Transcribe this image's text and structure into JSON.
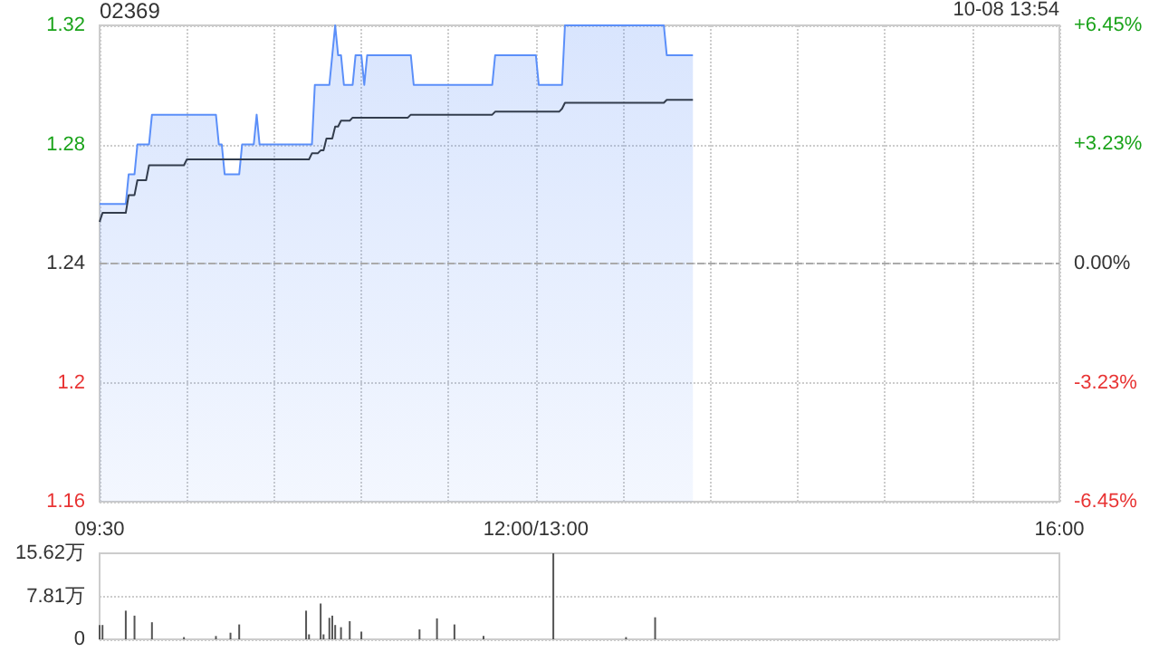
{
  "chart_data": [
    {
      "type": "line",
      "title": "02369",
      "annotations": [
        "10-08 13:54"
      ],
      "categories": [
        "09:30",
        null,
        null,
        null,
        null,
        null,
        null,
        null,
        null,
        null,
        null,
        null,
        null,
        null,
        null,
        null,
        null,
        null,
        null,
        null,
        null,
        null,
        null,
        null,
        null,
        null,
        null,
        null,
        null,
        null,
        null,
        null,
        null,
        null,
        null,
        null,
        null,
        null,
        null,
        null,
        null,
        null,
        null,
        null,
        null,
        null,
        null,
        null,
        null,
        null,
        null,
        null,
        null,
        null,
        null,
        null,
        null,
        null,
        null,
        null,
        null,
        null,
        null,
        null,
        null,
        null,
        null,
        null,
        null,
        null,
        null,
        null,
        null,
        null,
        null,
        null,
        null,
        null,
        null,
        null,
        null,
        null,
        null,
        null,
        null,
        null,
        null,
        null,
        null,
        null,
        null,
        null,
        null,
        null,
        null,
        null,
        null,
        null,
        null,
        null,
        null,
        null,
        null,
        null,
        null,
        null,
        null,
        null,
        null,
        null,
        null,
        null,
        null,
        null,
        null,
        null,
        null,
        null,
        null,
        null,
        null,
        null,
        null,
        null,
        null,
        null,
        null,
        null,
        null,
        null,
        null,
        null,
        null,
        null,
        null,
        null,
        null,
        null,
        null,
        null,
        null,
        null,
        null,
        null,
        null,
        null,
        null,
        null,
        null,
        null,
        "12:00/13:00",
        null,
        null,
        null,
        null,
        null,
        null,
        null,
        null,
        null,
        null,
        null,
        null,
        null,
        null,
        null,
        null,
        null,
        null,
        null,
        null,
        null,
        null,
        null,
        null,
        null,
        null,
        null,
        null,
        null,
        null,
        null,
        null,
        null,
        null,
        null,
        null,
        null,
        null,
        null,
        null,
        null,
        null,
        null,
        null,
        null,
        null,
        null,
        null,
        null,
        null,
        null,
        null,
        null,
        null,
        null,
        null,
        null,
        null,
        null,
        null,
        null,
        null,
        null,
        null,
        null,
        null,
        null,
        null,
        null,
        null,
        null,
        null,
        null,
        null,
        null,
        null,
        null,
        null,
        null,
        null,
        null,
        null,
        null,
        null,
        null,
        null,
        null,
        null,
        null,
        null,
        null,
        null,
        null,
        null,
        null,
        null,
        null,
        null,
        null,
        null,
        null,
        null,
        null,
        null,
        null,
        null,
        null,
        null,
        null,
        null,
        null,
        null,
        null,
        null,
        null,
        null,
        null,
        null,
        null,
        null,
        null,
        null,
        null,
        null,
        null,
        null,
        null,
        null,
        null,
        null,
        null,
        null,
        null,
        null,
        null,
        null,
        null,
        null,
        null,
        null,
        null,
        null,
        null,
        null,
        null,
        null,
        null,
        null,
        null,
        null,
        null,
        null,
        null,
        null,
        null,
        null,
        null,
        null,
        null,
        null,
        null,
        null,
        null,
        null,
        null,
        null,
        null,
        null,
        null,
        null,
        null,
        null,
        null,
        null,
        null,
        null,
        null,
        null,
        null,
        "16:00"
      ],
      "ylim": [
        1.16,
        1.32
      ],
      "yticks": [
        1.16,
        1.2,
        1.24,
        1.28,
        1.32
      ],
      "y2lim": [
        -6.45,
        6.45
      ],
      "y2ticks": [
        {
          "value": -6.45,
          "label": "-6.45%"
        },
        {
          "value": -3.23,
          "label": "-3.23%"
        },
        {
          "value": 0,
          "label": "0.00%"
        },
        {
          "value": 3.23,
          "label": "+3.23%"
        },
        {
          "value": 6.45,
          "label": "+6.45%"
        }
      ],
      "ref_lines": [
        {
          "axis": "y",
          "value": 1.24,
          "color": "#aaaaaa",
          "line_style": "dashed"
        }
      ],
      "grid": true,
      "marker": "none",
      "line_style": "solid",
      "series": [
        {
          "type": "area",
          "color": "#5b8ff9",
          "values": [
            1.26,
            1.26,
            1.26,
            1.26,
            1.26,
            1.26,
            1.26,
            1.26,
            1.26,
            1.26,
            1.27,
            1.27,
            1.27,
            1.28,
            1.28,
            1.28,
            1.28,
            1.28,
            1.29,
            1.29,
            1.29,
            1.29,
            1.29,
            1.29,
            1.29,
            1.29,
            1.29,
            1.29,
            1.29,
            1.29,
            1.29,
            1.29,
            1.29,
            1.29,
            1.29,
            1.29,
            1.29,
            1.29,
            1.29,
            1.29,
            1.29,
            1.28,
            1.28,
            1.27,
            1.27,
            1.27,
            1.27,
            1.27,
            1.27,
            1.28,
            1.28,
            1.28,
            1.28,
            1.28,
            1.29,
            1.28,
            1.28,
            1.28,
            1.28,
            1.28,
            1.28,
            1.28,
            1.28,
            1.28,
            1.28,
            1.28,
            1.28,
            1.28,
            1.28,
            1.28,
            1.28,
            1.28,
            1.28,
            1.28,
            1.3,
            1.3,
            1.3,
            1.3,
            1.3,
            1.3,
            1.31,
            1.32,
            1.31,
            1.31,
            1.3,
            1.3,
            1.3,
            1.3,
            1.31,
            1.31,
            1.31,
            1.3,
            1.31,
            1.31,
            1.31,
            1.31,
            1.31,
            1.31,
            1.31,
            1.31,
            1.31,
            1.31,
            1.31,
            1.31,
            1.31,
            1.31,
            1.31,
            1.31,
            1.3,
            1.3,
            1.3,
            1.3,
            1.3,
            1.3,
            1.3,
            1.3,
            1.3,
            1.3,
            1.3,
            1.3,
            1.3,
            1.3,
            1.3,
            1.3,
            1.3,
            1.3,
            1.3,
            1.3,
            1.3,
            1.3,
            1.3,
            1.3,
            1.3,
            1.3,
            1.3,
            1.3,
            1.31,
            1.31,
            1.31,
            1.31,
            1.31,
            1.31,
            1.31,
            1.31,
            1.31,
            1.31,
            1.31,
            1.31,
            1.31,
            1.31,
            1.31,
            1.3,
            1.3,
            1.3,
            1.3,
            1.3,
            1.3,
            1.3,
            1.3,
            1.3,
            1.32,
            1.32,
            1.32,
            1.32,
            1.32,
            1.32,
            1.32,
            1.32,
            1.32,
            1.32,
            1.32,
            1.32,
            1.32,
            1.32,
            1.32,
            1.32,
            1.32,
            1.32,
            1.32,
            1.32,
            1.32,
            1.32,
            1.32,
            1.32,
            1.32,
            1.32,
            1.32,
            1.32,
            1.32,
            1.32,
            1.32,
            1.32,
            1.32,
            1.32,
            1.32,
            1.31,
            1.31,
            1.31,
            1.31,
            1.31,
            1.31,
            1.31,
            1.31,
            1.31,
            1.31,
            null,
            null,
            null,
            null,
            null,
            null,
            null,
            null,
            null,
            null,
            null,
            null,
            null,
            null,
            null,
            null,
            null,
            null,
            null,
            null,
            null,
            null,
            null,
            null,
            null,
            null,
            null,
            null,
            null,
            null,
            null,
            null,
            null,
            null,
            null,
            null,
            null,
            null,
            null,
            null,
            null,
            null,
            null,
            null,
            null,
            null,
            null,
            null,
            null,
            null,
            null,
            null,
            null,
            null,
            null,
            null,
            null,
            null,
            null,
            null,
            null,
            null,
            null,
            null,
            null,
            null,
            null,
            null,
            null,
            null,
            null,
            null,
            null,
            null,
            null,
            null,
            null,
            null,
            null,
            null,
            null,
            null,
            null,
            null,
            null,
            null,
            null,
            null,
            null,
            null,
            null,
            null,
            null,
            null,
            null,
            null,
            null,
            null,
            null,
            null,
            null,
            null,
            null,
            null,
            null,
            null,
            null,
            null,
            null,
            null,
            null,
            null,
            null,
            null,
            null,
            null,
            null,
            null,
            null,
            null,
            null,
            null,
            null,
            null,
            null,
            null
          ]
        },
        {
          "color": "#333d4d",
          "values": [
            1.254,
            1.257,
            1.257,
            1.257,
            1.257,
            1.257,
            1.257,
            1.257,
            1.257,
            1.257,
            1.263,
            1.263,
            1.263,
            1.268,
            1.268,
            1.268,
            1.268,
            1.273,
            1.273,
            1.273,
            1.273,
            1.273,
            1.273,
            1.273,
            1.273,
            1.273,
            1.273,
            1.273,
            1.273,
            1.273,
            1.275,
            1.275,
            1.275,
            1.275,
            1.275,
            1.275,
            1.275,
            1.275,
            1.275,
            1.275,
            1.275,
            1.275,
            1.275,
            1.275,
            1.275,
            1.275,
            1.275,
            1.275,
            1.275,
            1.275,
            1.275,
            1.275,
            1.275,
            1.275,
            1.275,
            1.275,
            1.275,
            1.275,
            1.275,
            1.275,
            1.275,
            1.275,
            1.275,
            1.275,
            1.275,
            1.275,
            1.275,
            1.275,
            1.275,
            1.275,
            1.275,
            1.275,
            1.275,
            1.277,
            1.277,
            1.277,
            1.278,
            1.278,
            1.282,
            1.282,
            1.282,
            1.286,
            1.286,
            1.288,
            1.288,
            1.288,
            1.288,
            1.289,
            1.289,
            1.289,
            1.289,
            1.289,
            1.289,
            1.289,
            1.289,
            1.289,
            1.289,
            1.289,
            1.289,
            1.289,
            1.289,
            1.289,
            1.289,
            1.289,
            1.289,
            1.289,
            1.289,
            1.29,
            1.29,
            1.29,
            1.29,
            1.29,
            1.29,
            1.29,
            1.29,
            1.29,
            1.29,
            1.29,
            1.29,
            1.29,
            1.29,
            1.29,
            1.29,
            1.29,
            1.29,
            1.29,
            1.29,
            1.29,
            1.29,
            1.29,
            1.29,
            1.29,
            1.29,
            1.29,
            1.29,
            1.29,
            1.291,
            1.291,
            1.291,
            1.291,
            1.291,
            1.291,
            1.291,
            1.291,
            1.291,
            1.291,
            1.291,
            1.291,
            1.291,
            1.291,
            1.291,
            1.291,
            1.291,
            1.291,
            1.291,
            1.291,
            1.291,
            1.291,
            1.291,
            1.292,
            1.294,
            1.294,
            1.294,
            1.294,
            1.294,
            1.294,
            1.294,
            1.294,
            1.294,
            1.294,
            1.294,
            1.294,
            1.294,
            1.294,
            1.294,
            1.294,
            1.294,
            1.294,
            1.294,
            1.294,
            1.294,
            1.294,
            1.294,
            1.294,
            1.294,
            1.294,
            1.294,
            1.294,
            1.294,
            1.294,
            1.294,
            1.294,
            1.294,
            1.294,
            1.294,
            1.295,
            1.295,
            1.295,
            1.295,
            1.295,
            1.295,
            1.295,
            1.295,
            1.295,
            1.295,
            null,
            null,
            null,
            null,
            null,
            null,
            null,
            null,
            null,
            null,
            null,
            null,
            null,
            null,
            null,
            null,
            null,
            null,
            null,
            null,
            null,
            null,
            null,
            null,
            null,
            null,
            null,
            null,
            null,
            null,
            null,
            null,
            null,
            null,
            null,
            null,
            null,
            null,
            null,
            null,
            null,
            null,
            null,
            null,
            null,
            null,
            null,
            null,
            null,
            null,
            null,
            null,
            null,
            null,
            null,
            null,
            null,
            null,
            null,
            null,
            null,
            null,
            null,
            null,
            null,
            null,
            null,
            null,
            null,
            null,
            null,
            null,
            null,
            null,
            null,
            null,
            null,
            null,
            null,
            null,
            null,
            null,
            null,
            null,
            null,
            null,
            null,
            null,
            null,
            null,
            null,
            null,
            null,
            null,
            null,
            null,
            null,
            null,
            null,
            null,
            null,
            null,
            null,
            null,
            null,
            null,
            null,
            null,
            null,
            null,
            null,
            null,
            null,
            null,
            null,
            null,
            null,
            null,
            null,
            null,
            null,
            null,
            null,
            null,
            null,
            null
          ]
        }
      ]
    },
    {
      "type": "bar",
      "tick_labels": "y",
      "grid": "y",
      "categories": [
        null,
        null,
        null,
        null,
        null,
        null,
        null,
        null,
        null,
        null,
        null,
        null,
        null,
        null,
        null,
        null,
        null,
        null,
        null,
        null,
        null,
        null,
        null,
        null,
        null,
        null,
        null,
        null,
        null,
        null,
        null,
        null,
        null,
        null,
        null,
        null,
        null,
        null,
        null,
        null,
        null,
        null,
        null,
        null,
        null,
        null,
        null,
        null,
        null,
        null,
        null,
        null,
        null,
        null,
        null,
        null,
        null,
        null,
        null,
        null,
        null,
        null,
        null,
        null,
        null,
        null,
        null,
        null,
        null,
        null,
        null,
        null,
        null,
        null,
        null,
        null,
        null,
        null,
        null,
        null,
        null,
        null,
        null,
        null,
        null,
        null,
        null,
        null,
        null,
        null,
        null,
        null,
        null,
        null,
        null,
        null,
        null,
        null,
        null,
        null,
        null,
        null,
        null,
        null,
        null,
        null,
        null,
        null,
        null,
        null,
        null,
        null,
        null,
        null,
        null,
        null,
        null,
        null,
        null,
        null,
        null,
        null,
        null,
        null,
        null,
        null,
        null,
        null,
        null,
        null,
        null,
        null,
        null,
        null,
        null,
        null,
        null,
        null,
        null,
        null,
        null,
        null,
        null,
        null,
        null,
        null,
        null,
        null,
        null,
        null,
        null,
        null,
        null,
        null,
        null,
        null,
        null,
        null,
        null,
        null,
        null,
        null,
        null,
        null,
        null,
        null,
        null,
        null,
        null,
        null,
        null,
        null,
        null,
        null,
        null,
        null,
        null,
        null,
        null,
        null,
        null,
        null,
        null,
        null,
        null,
        null,
        null,
        null,
        null,
        null,
        null,
        null,
        null,
        null,
        null,
        null,
        null,
        null,
        null,
        null,
        null,
        null,
        null,
        null,
        null,
        null,
        null,
        null,
        null,
        null,
        null,
        null,
        null,
        null,
        null,
        null,
        null,
        null,
        null,
        null,
        null,
        null,
        null,
        null,
        null,
        null,
        null,
        null,
        null,
        null,
        null,
        null,
        null,
        null,
        null,
        null,
        null,
        null,
        null,
        null,
        null,
        null,
        null,
        null,
        null,
        null,
        null,
        null,
        null,
        null,
        null,
        null,
        null,
        null,
        null,
        null,
        null,
        null,
        null,
        null,
        null,
        null,
        null,
        null,
        null,
        null,
        null,
        null,
        null,
        null,
        null,
        null,
        null,
        null,
        null,
        null,
        null,
        null,
        null,
        null,
        null,
        null,
        null,
        null,
        null,
        null,
        null,
        null,
        null,
        null,
        null,
        null,
        null,
        null,
        null,
        null,
        null,
        null,
        null,
        null,
        null,
        null,
        null,
        null,
        null,
        null,
        null,
        null,
        null,
        null,
        null,
        null,
        null,
        null,
        null,
        null,
        null,
        null,
        null,
        null,
        null,
        null,
        null,
        null,
        null,
        null,
        null,
        null,
        null,
        null,
        null
      ],
      "ylim": [
        0,
        15.62
      ],
      "yticks": [
        0,
        {
          "value": 7.81,
          "label": "7.81万"
        },
        {
          "value": 15.62,
          "label": "15.62万"
        }
      ],
      "series": [
        {
          "color": "#555555",
          "values": [
            2.6,
            2.6,
            null,
            null,
            null,
            null,
            null,
            null,
            null,
            5.2,
            null,
            null,
            4.3,
            null,
            null,
            null,
            null,
            null,
            3.1,
            null,
            null,
            null,
            null,
            null,
            null,
            null,
            null,
            null,
            null,
            0.4,
            null,
            null,
            null,
            null,
            null,
            null,
            null,
            null,
            null,
            null,
            0.6,
            null,
            null,
            null,
            null,
            1.2,
            null,
            null,
            2.7,
            null,
            null,
            null,
            null,
            null,
            null,
            null,
            null,
            null,
            null,
            null,
            null,
            null,
            null,
            null,
            null,
            null,
            null,
            null,
            null,
            null,
            null,
            5.2,
            0.9,
            null,
            null,
            null,
            6.5,
            0.9,
            null,
            3.9,
            4.3,
            2.6,
            null,
            2.2,
            null,
            null,
            3.3,
            null,
            null,
            null,
            1.4,
            null,
            null,
            null,
            null,
            null,
            null,
            null,
            null,
            null,
            null,
            null,
            null,
            null,
            null,
            null,
            null,
            null,
            null,
            null,
            1.8,
            null,
            null,
            null,
            null,
            null,
            3.8,
            null,
            null,
            null,
            null,
            null,
            2.7,
            null,
            null,
            null,
            null,
            null,
            null,
            null,
            null,
            null,
            0.6,
            null,
            null,
            null,
            null,
            null,
            null,
            null,
            null,
            null,
            null,
            null,
            null,
            null,
            null,
            null,
            null,
            null,
            null,
            null,
            null,
            null,
            null,
            null,
            15.62,
            null,
            null,
            null,
            null,
            null,
            null,
            null,
            null,
            null,
            null,
            null,
            null,
            null,
            null,
            null,
            null,
            null,
            null,
            null,
            null,
            null,
            null,
            null,
            null,
            0.4,
            null,
            null,
            null,
            null,
            null,
            null,
            null,
            null,
            null,
            4.0,
            null,
            null,
            null,
            null,
            null,
            null,
            null,
            null,
            null,
            null,
            null,
            null,
            null,
            null,
            null,
            null,
            null,
            null,
            null,
            null,
            null,
            null,
            null,
            null,
            null,
            null,
            null,
            null,
            null,
            null,
            null,
            null,
            null,
            null,
            null,
            null,
            null,
            null,
            null,
            null,
            null,
            null,
            null,
            null,
            null,
            null,
            null,
            null,
            null,
            null,
            null,
            null,
            null,
            null,
            null,
            null,
            null,
            null,
            null,
            null,
            null,
            null,
            null,
            null,
            null,
            null,
            null,
            null,
            null,
            null,
            null,
            null,
            null,
            null,
            null,
            null,
            null,
            null,
            null,
            null,
            null,
            null,
            null,
            null,
            null,
            null,
            null,
            null,
            null,
            null,
            null,
            null,
            null,
            null,
            null,
            null,
            null,
            null,
            null,
            null,
            null,
            null,
            null,
            null,
            null,
            null,
            null,
            null,
            null,
            null,
            null,
            null,
            null,
            null,
            null,
            null,
            null,
            null,
            null,
            null,
            null,
            null,
            null,
            null,
            null,
            null,
            null,
            null,
            null,
            null,
            null,
            null,
            null,
            null,
            null,
            null,
            null,
            null,
            null
          ]
        }
      ]
    }
  ]
}
